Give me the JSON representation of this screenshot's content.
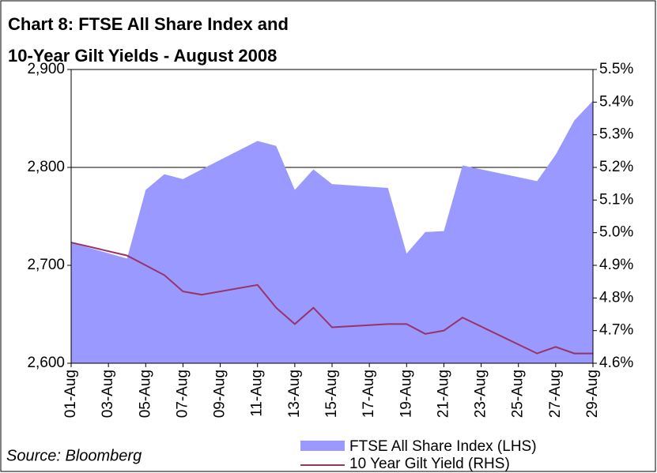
{
  "chart_data": {
    "type": "area-line",
    "title": "Chart 8: FTSE All Share Index and",
    "subtitle": "10-Year Gilt Yields - August 2008",
    "source": "Source: Bloomberg",
    "x": [
      "01-Aug",
      "04-Aug",
      "05-Aug",
      "06-Aug",
      "07-Aug",
      "08-Aug",
      "11-Aug",
      "12-Aug",
      "13-Aug",
      "14-Aug",
      "15-Aug",
      "18-Aug",
      "19-Aug",
      "20-Aug",
      "21-Aug",
      "22-Aug",
      "26-Aug",
      "27-Aug",
      "28-Aug",
      "29-Aug"
    ],
    "xlim": [
      "01-Aug",
      "29-Aug"
    ],
    "xticks": [
      "01-Aug",
      "03-Aug",
      "05-Aug",
      "07-Aug",
      "09-Aug",
      "11-Aug",
      "13-Aug",
      "15-Aug",
      "17-Aug",
      "19-Aug",
      "21-Aug",
      "23-Aug",
      "25-Aug",
      "27-Aug",
      "29-Aug"
    ],
    "series": [
      {
        "name": "FTSE All Share Index (LHS)",
        "color": "#9999ff",
        "kind": "area",
        "values": [
          2723,
          2707,
          2777,
          2793,
          2788,
          2798,
          2827,
          2822,
          2777,
          2798,
          2783,
          2779,
          2712,
          2734,
          2735,
          2802,
          2786,
          2813,
          2848,
          2868
        ]
      },
      {
        "name": "10 Year Gilt Yield (RHS)",
        "color": "#993366",
        "kind": "line",
        "axis": "y2",
        "values": [
          4.97,
          4.93,
          4.9,
          4.87,
          4.82,
          4.81,
          4.84,
          4.77,
          4.72,
          4.77,
          4.71,
          4.72,
          4.72,
          4.69,
          4.7,
          4.74,
          4.63,
          4.65,
          4.63,
          4.63
        ]
      }
    ],
    "ylim": [
      2600,
      2900
    ],
    "yticks": [
      {
        "value": 2600,
        "label": "2,600"
      },
      {
        "value": 2700,
        "label": "2,700"
      },
      {
        "value": 2800,
        "label": "2,800"
      },
      {
        "value": 2900,
        "label": "2,900"
      }
    ],
    "y2lim": [
      4.6,
      5.5
    ],
    "y2ticks": [
      {
        "value": 4.6,
        "label": "4.6%"
      },
      {
        "value": 4.7,
        "label": "4.7%"
      },
      {
        "value": 4.8,
        "label": "4.8%"
      },
      {
        "value": 4.9,
        "label": "4.9%"
      },
      {
        "value": 5.0,
        "label": "5.0%"
      },
      {
        "value": 5.1,
        "label": "5.1%"
      },
      {
        "value": 5.2,
        "label": "5.2%"
      },
      {
        "value": 5.3,
        "label": "5.3%"
      },
      {
        "value": 5.4,
        "label": "5.4%"
      },
      {
        "value": 5.5,
        "label": "5.5%"
      }
    ],
    "grid": true
  }
}
